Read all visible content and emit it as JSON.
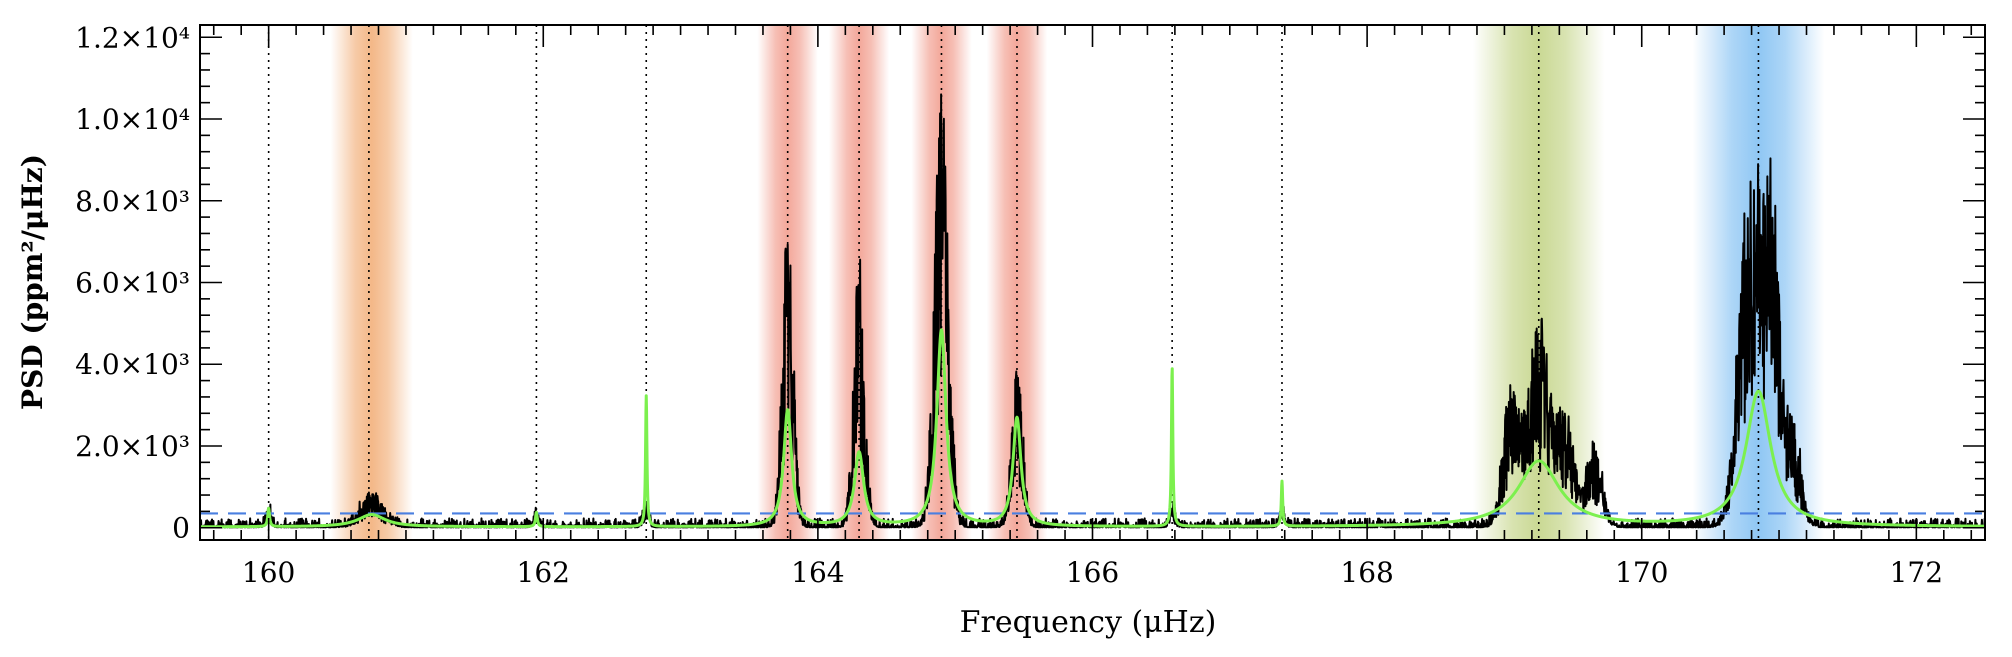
{
  "chart_data": {
    "type": "line",
    "xlabel": "Frequency (μHz)",
    "ylabel": "PSD (ppm²/μHz)",
    "xlim": [
      159.5,
      172.5
    ],
    "ylim": [
      -300,
      12300
    ],
    "x_ticks": [
      {
        "value": 160,
        "label": "160"
      },
      {
        "value": 162,
        "label": "162"
      },
      {
        "value": 164,
        "label": "164"
      },
      {
        "value": 166,
        "label": "166"
      },
      {
        "value": 168,
        "label": "168"
      },
      {
        "value": 170,
        "label": "170"
      },
      {
        "value": 172,
        "label": "172"
      }
    ],
    "y_ticks": [
      {
        "value": 0,
        "label": "0"
      },
      {
        "value": 2000,
        "label": "2.0×10³"
      },
      {
        "value": 4000,
        "label": "4.0×10³"
      },
      {
        "value": 6000,
        "label": "6.0×10³"
      },
      {
        "value": 8000,
        "label": "8.0×10³"
      },
      {
        "value": 10000,
        "label": "1.0×10⁴"
      },
      {
        "value": 12000,
        "label": "1.2×10⁴"
      }
    ],
    "threshold_level": 350,
    "dotted_lines_x": [
      160.0,
      160.73,
      161.95,
      162.75,
      163.78,
      164.3,
      164.9,
      165.45,
      166.58,
      167.38,
      169.25,
      170.85
    ],
    "shaded_bands": [
      {
        "center": 160.75,
        "half_width": 0.3,
        "color": "#f0a060"
      },
      {
        "center": 163.78,
        "half_width": 0.22,
        "color": "#ef8a78"
      },
      {
        "center": 164.3,
        "half_width": 0.22,
        "color": "#ef8a78"
      },
      {
        "center": 164.9,
        "half_width": 0.22,
        "color": "#ef8a78"
      },
      {
        "center": 165.45,
        "half_width": 0.22,
        "color": "#ef8a78"
      },
      {
        "center": 169.25,
        "half_width": 0.48,
        "color": "#b8cc70"
      },
      {
        "center": 170.85,
        "half_width": 0.48,
        "color": "#6ab4f0"
      }
    ],
    "observed_peaks": [
      {
        "x": 160.0,
        "height": 450,
        "width": 0.02
      },
      {
        "x": 160.75,
        "height": 850,
        "width": 0.08
      },
      {
        "x": 161.95,
        "height": 350,
        "width": 0.02
      },
      {
        "x": 162.75,
        "height": 600,
        "width": 0.02
      },
      {
        "x": 163.78,
        "height": 7500,
        "width": 0.04
      },
      {
        "x": 164.3,
        "height": 6600,
        "width": 0.04
      },
      {
        "x": 164.9,
        "height": 11200,
        "width": 0.05
      },
      {
        "x": 165.45,
        "height": 4100,
        "width": 0.04
      },
      {
        "x": 166.58,
        "height": 500,
        "width": 0.02
      },
      {
        "x": 167.38,
        "height": 500,
        "width": 0.02
      },
      {
        "x": 169.05,
        "height": 3500,
        "width": 0.06
      },
      {
        "x": 169.25,
        "height": 5300,
        "width": 0.08
      },
      {
        "x": 169.45,
        "height": 3000,
        "width": 0.06
      },
      {
        "x": 169.65,
        "height": 2000,
        "width": 0.06
      },
      {
        "x": 170.75,
        "height": 5200,
        "width": 0.07
      },
      {
        "x": 170.85,
        "height": 6200,
        "width": 0.08
      },
      {
        "x": 170.95,
        "height": 6500,
        "width": 0.06
      },
      {
        "x": 171.1,
        "height": 2500,
        "width": 0.06
      }
    ],
    "fit_components": [
      {
        "x": 160.0,
        "height": 450,
        "hwhm": 0.008
      },
      {
        "x": 160.75,
        "height": 300,
        "hwhm": 0.12
      },
      {
        "x": 161.95,
        "height": 350,
        "hwhm": 0.008
      },
      {
        "x": 162.75,
        "height": 3200,
        "hwhm": 0.006
      },
      {
        "x": 163.78,
        "height": 2850,
        "hwhm": 0.035
      },
      {
        "x": 164.3,
        "height": 1800,
        "hwhm": 0.04
      },
      {
        "x": 164.9,
        "height": 4800,
        "hwhm": 0.04
      },
      {
        "x": 165.45,
        "height": 2650,
        "hwhm": 0.035
      },
      {
        "x": 166.58,
        "height": 3900,
        "hwhm": 0.006
      },
      {
        "x": 167.38,
        "height": 1100,
        "hwhm": 0.006
      },
      {
        "x": 169.25,
        "height": 1600,
        "hwhm": 0.18
      },
      {
        "x": 170.85,
        "height": 3300,
        "hwhm": 0.11
      }
    ],
    "colors": {
      "observed": "#000000",
      "fit": "#7cf04e",
      "threshold": "#4a7fe0",
      "axis": "#000000"
    },
    "grid": false
  }
}
